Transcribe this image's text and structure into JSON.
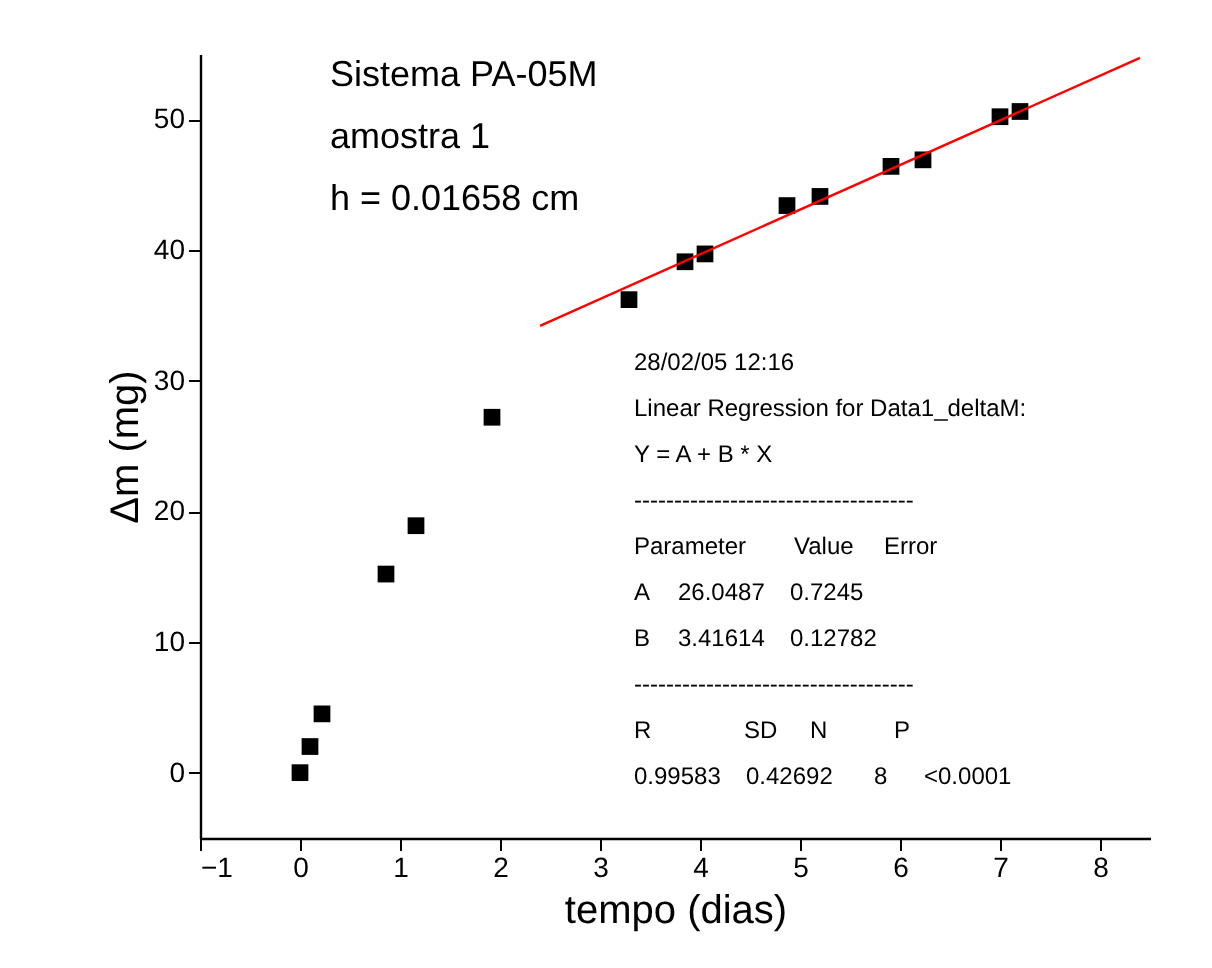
{
  "chart_data": {
    "type": "scatter",
    "xlabel": "tempo (dias)",
    "ylabel": "Δm (mg)",
    "xlim": [
      -1,
      8.5
    ],
    "ylim": [
      -5,
      55
    ],
    "xticks": [
      -1,
      0,
      1,
      2,
      3,
      4,
      5,
      6,
      7,
      8
    ],
    "yticks": [
      0,
      10,
      20,
      30,
      40,
      50
    ],
    "grid": false,
    "series": [
      {
        "color": "#000000",
        "marker": "square",
        "x": [
          0,
          0.1,
          0.22,
          0.86,
          1.16,
          1.92,
          3.29,
          3.85,
          4.05,
          4.87,
          5.2,
          5.91,
          6.23,
          7.0,
          7.2
        ],
        "values": [
          0,
          2,
          4.5,
          15.2,
          18.9,
          27.2,
          36.2,
          39.1,
          39.7,
          43.4,
          44.1,
          46.4,
          46.9,
          50.2,
          50.6
        ]
      },
      {
        "type": "line",
        "color": "#ff0000",
        "marker": "none",
        "line_style": "solid",
        "x": [
          2.4,
          8.4
        ],
        "values": [
          34.2,
          54.7
        ]
      }
    ],
    "annotations": [
      "Sistema PA-05M",
      "amostra 1",
      "h = 0.01658 cm",
      "28/02/05 12:16",
      "Linear Regression for Data1_deltaM:",
      "Y = A + B * X",
      "-----------------------------------",
      "Parameter       Value   Error",
      "A    26.0487    0.7245",
      "B    3.41614    0.12782",
      "-----------------------------------",
      "R         SD        N       P",
      "0.99583    0.42692    8    <0.0001"
    ]
  }
}
